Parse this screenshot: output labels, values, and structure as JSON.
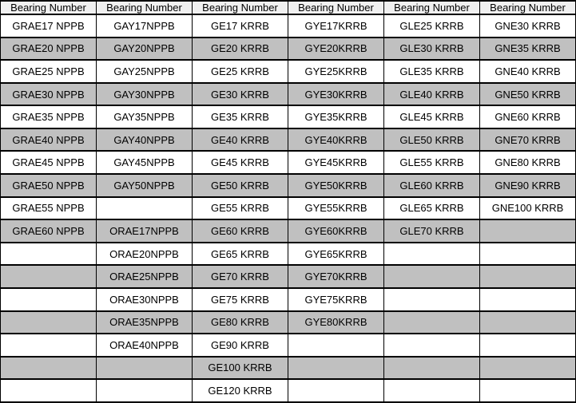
{
  "colors": {
    "header_bg": "#f0f0f0",
    "row_base": "#ffffff",
    "row_alt": "#c0c0c0",
    "border": "#000000",
    "text": "#000000"
  },
  "chart_data": {
    "type": "table",
    "title": "Bearing Number cross-reference table",
    "headers": [
      "Bearing Number",
      "Bearing Number",
      "Bearing Number",
      "Bearing Number",
      "Bearing Number",
      "Bearing Number"
    ],
    "rows": [
      [
        "GRAE17 NPPB",
        "GAY17NPPB",
        "GE17 KRRB",
        "GYE17KRRB",
        "GLE25 KRRB",
        "GNE30 KRRB"
      ],
      [
        "GRAE20 NPPB",
        "GAY20NPPB",
        "GE20 KRRB",
        "GYE20KRRB",
        "GLE30 KRRB",
        "GNE35 KRRB"
      ],
      [
        "GRAE25 NPPB",
        "GAY25NPPB",
        "GE25 KRRB",
        "GYE25KRRB",
        "GLE35 KRRB",
        "GNE40 KRRB"
      ],
      [
        "GRAE30 NPPB",
        "GAY30NPPB",
        "GE30 KRRB",
        "GYE30KRRB",
        "GLE40 KRRB",
        "GNE50 KRRB"
      ],
      [
        "GRAE35 NPPB",
        "GAY35NPPB",
        "GE35 KRRB",
        "GYE35KRRB",
        "GLE45 KRRB",
        "GNE60 KRRB"
      ],
      [
        "GRAE40 NPPB",
        "GAY40NPPB",
        "GE40 KRRB",
        "GYE40KRRB",
        "GLE50 KRRB",
        "GNE70 KRRB"
      ],
      [
        "GRAE45 NPPB",
        "GAY45NPPB",
        "GE45 KRRB",
        "GYE45KRRB",
        "GLE55 KRRB",
        "GNE80 KRRB"
      ],
      [
        "GRAE50 NPPB",
        "GAY50NPPB",
        "GE50 KRRB",
        "GYE50KRRB",
        "GLE60 KRRB",
        "GNE90 KRRB"
      ],
      [
        "GRAE55 NPPB",
        "",
        "GE55 KRRB",
        "GYE55KRRB",
        "GLE65 KRRB",
        "GNE100 KRRB"
      ],
      [
        "GRAE60 NPPB",
        "ORAE17NPPB",
        "GE60 KRRB",
        "GYE60KRRB",
        "GLE70 KRRB",
        ""
      ],
      [
        "",
        "ORAE20NPPB",
        "GE65 KRRB",
        "GYE65KRRB",
        "",
        ""
      ],
      [
        "",
        "ORAE25NPPB",
        "GE70 KRRB",
        "GYE70KRRB",
        "",
        ""
      ],
      [
        "",
        "ORAE30NPPB",
        "GE75 KRRB",
        "GYE75KRRB",
        "",
        ""
      ],
      [
        "",
        "ORAE35NPPB",
        "GE80 KRRB",
        "GYE80KRRB",
        "",
        ""
      ],
      [
        "",
        "ORAE40NPPB",
        "GE90 KRRB",
        "",
        "",
        ""
      ],
      [
        "",
        "",
        "GE100 KRRB",
        "",
        "",
        ""
      ],
      [
        "",
        "",
        "GE120 KRRB",
        "",
        "",
        ""
      ]
    ]
  }
}
